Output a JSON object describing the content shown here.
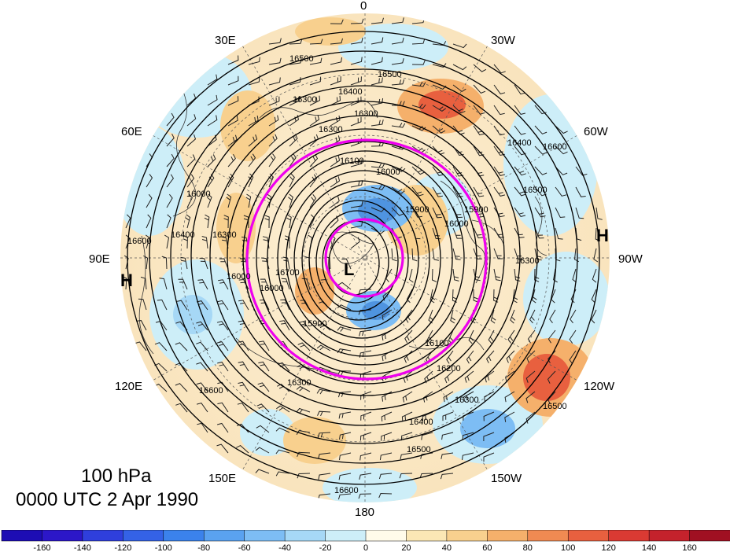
{
  "title": {
    "level": "100 hPa",
    "time": "0000 UTC 2 Apr 1990"
  },
  "map": {
    "projection": "north-polar-stereographic",
    "longitude_labels": {
      "top": "0",
      "top_left": "30E",
      "top_right": "30W",
      "upper_left": "60E",
      "upper_right": "60W",
      "left": "90E",
      "right": "90W",
      "lower_left": "120E",
      "lower_right": "120W",
      "bottom_left": "150E",
      "bottom_right": "150W",
      "bottom": "180"
    },
    "pressure_systems": [
      {
        "type": "L",
        "label": "L"
      },
      {
        "type": "H",
        "label": "H",
        "where": "left edge"
      },
      {
        "type": "H",
        "label": "H",
        "where": "right edge"
      }
    ],
    "contour_labels": [
      "16500",
      "16500",
      "16400",
      "16300",
      "16300",
      "16300",
      "16100",
      "16000",
      "16000",
      "15900",
      "16000",
      "15900",
      "16600",
      "16400",
      "16300",
      "16700",
      "16000",
      "15900",
      "16000",
      "16100",
      "16200",
      "16300",
      "16400",
      "16500",
      "16600",
      "16500",
      "16600",
      "16300",
      "16600",
      "16500",
      "16400",
      "16300"
    ],
    "anomaly_colors": {
      "positive": "#e8403a",
      "weak_positive": "#f7d29c",
      "negative": "#4f94e0",
      "weak_negative": "#b9e2f5",
      "circle": "#ee00ee"
    }
  },
  "colorbar": {
    "tick_labels": [
      "-160",
      "-140",
      "-120",
      "-100",
      "-80",
      "-60",
      "-40",
      "-20",
      "0",
      "20",
      "40",
      "60",
      "80",
      "100",
      "120",
      "140",
      "160"
    ],
    "colors": [
      "#2c17c8",
      "#2f3fdc",
      "#3462e6",
      "#3b82ec",
      "#5aa2f0",
      "#7dbdf4",
      "#a6d8f6",
      "#cdeef8",
      "#fffbea",
      "#fbe7b5",
      "#f8d08e",
      "#f5b06b",
      "#f08a52",
      "#e8603f",
      "#da3a33",
      "#c4222c",
      "#a01022"
    ]
  }
}
